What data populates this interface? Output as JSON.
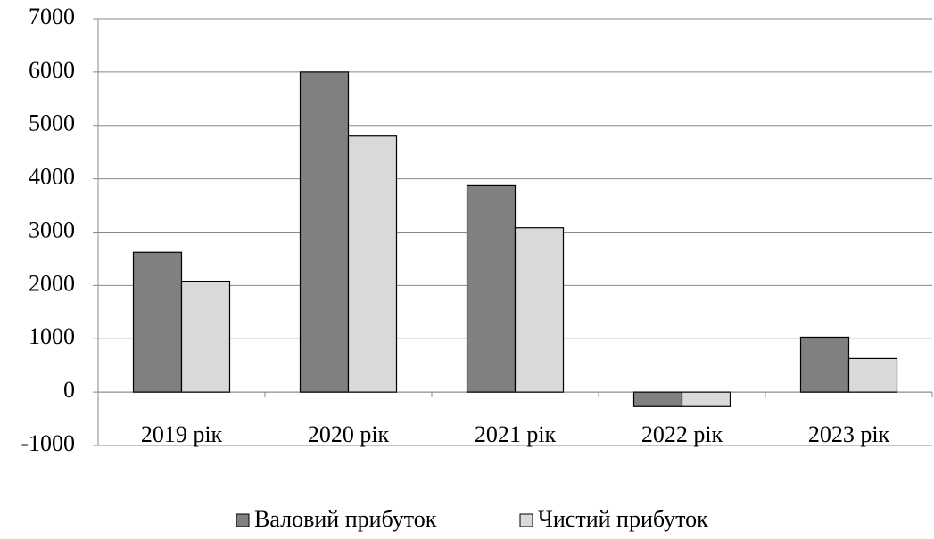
{
  "chart_data": {
    "type": "bar",
    "categories": [
      "2019 рік",
      "2020 рік",
      "2021 рік",
      "2022 рік",
      "2023 рік"
    ],
    "series": [
      {
        "name": "Валовий прибуток",
        "color": "#808080",
        "values": [
          2620,
          6000,
          3870,
          -270,
          1030
        ]
      },
      {
        "name": "Чистий прибуток",
        "color": "#d9d9d9",
        "values": [
          2080,
          4800,
          3080,
          -270,
          630
        ]
      }
    ],
    "ylim": [
      -1000,
      7000
    ],
    "yticks": [
      -1000,
      0,
      1000,
      2000,
      3000,
      4000,
      5000,
      6000,
      7000
    ],
    "grid": true,
    "legend": "bottom"
  }
}
